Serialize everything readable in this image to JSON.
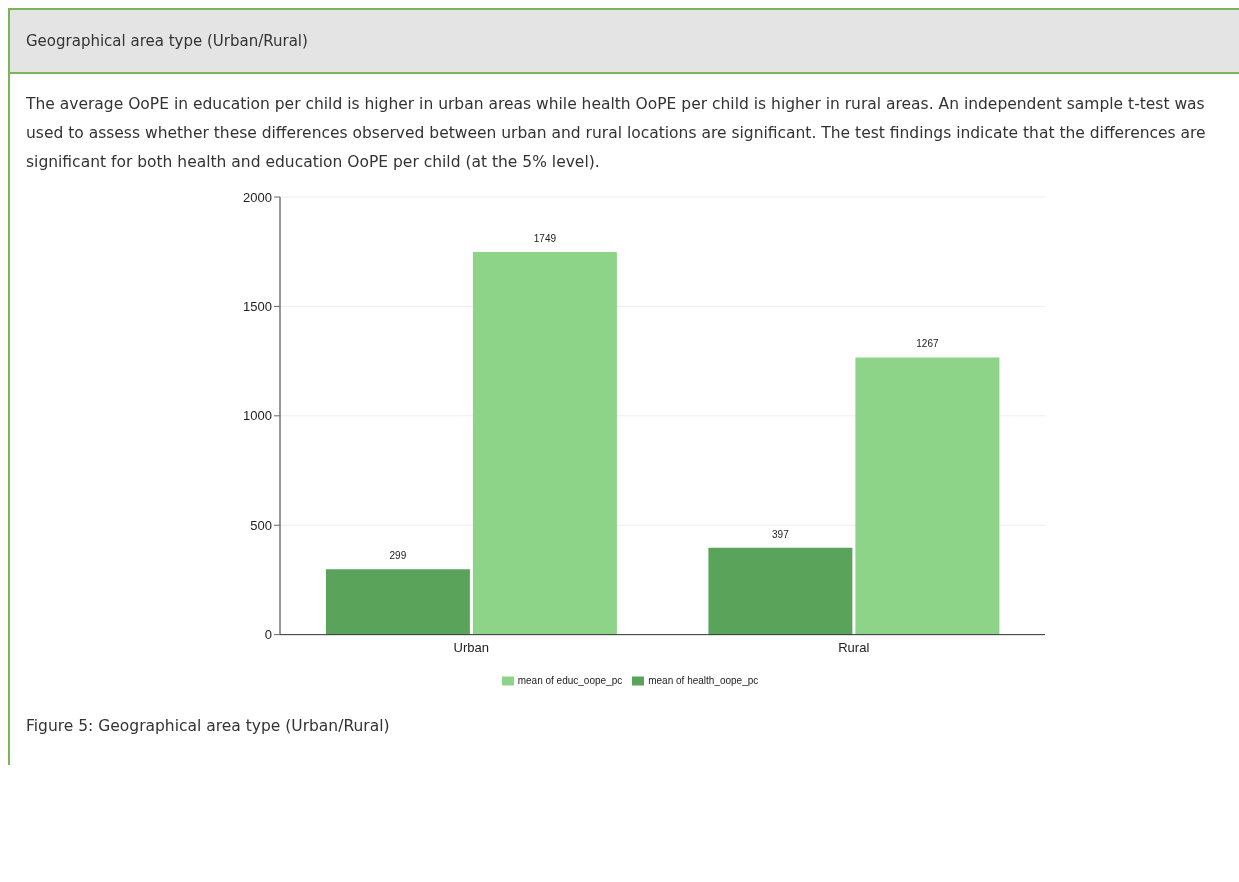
{
  "chart_data": {
    "type": "bar",
    "title": "Geographical area type (Urban/Rural)",
    "subtitle": "The average OoPE in education per child is higher in urban areas while health OoPE per child is higher in rural areas.  An independent sample t-test was used to assess whether these differences observed between urban and rural locations are significant. The test findings indicate that the differences are significant for both health and education OoPE per child (at the 5% level).",
    "annotations": [
      "Figure 5: Geographical area type (Urban/Rural)"
    ],
    "categories": [
      "Urban",
      "Rural"
    ],
    "series": [
      {
        "name": "mean of health_oope_pc",
        "color": "#59a35a",
        "values": [
          299,
          397
        ]
      },
      {
        "name": "mean of educ_oope_pc",
        "color": "#8ed488",
        "values": [
          1749,
          1267
        ]
      }
    ],
    "ylim": [
      0,
      2000
    ],
    "yticks": [
      0,
      500,
      1000,
      1500,
      2000
    ],
    "grid": "y",
    "legend": "bottom",
    "data_labels": true
  }
}
